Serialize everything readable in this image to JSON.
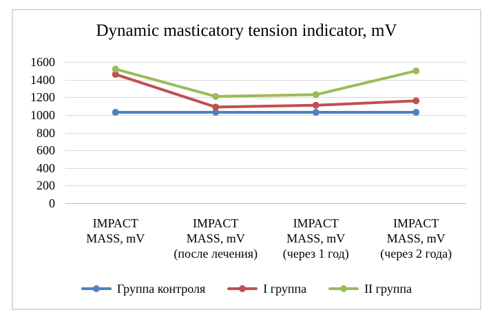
{
  "chart_data": {
    "type": "line",
    "title": "Dynamic masticatory tension indicator, mV",
    "categories": [
      "IMPACT\nMASS, mV",
      "IMPACT\nMASS, mV\n(после лечения)",
      "IMPACT\nMASS, mV\n(через 1 год)",
      "IMPACT\nMASS, mV\n(через 2 года)"
    ],
    "series": [
      {
        "name": "Группа контроля",
        "color": "#4F81BD",
        "values": [
          1030,
          1030,
          1030,
          1030
        ]
      },
      {
        "name": "I группа",
        "color": "#C0504D",
        "values": [
          1460,
          1090,
          1110,
          1160
        ]
      },
      {
        "name": "II группа",
        "color": "#9BBB59",
        "values": [
          1520,
          1210,
          1230,
          1500
        ]
      }
    ],
    "ylim": [
      0,
      1600
    ],
    "ytick_step": 200,
    "yticks": [
      "1600",
      "1400",
      "1200",
      "1000",
      "800",
      "600",
      "400",
      "200",
      "0"
    ],
    "grid": true,
    "legend_position": "bottom",
    "colors": {
      "gridline": "#D9D9D9",
      "zero_line": "#BFBFBF",
      "frame_border": "#D9D9D9",
      "text": "#000000",
      "background": "#FFFFFF"
    }
  }
}
